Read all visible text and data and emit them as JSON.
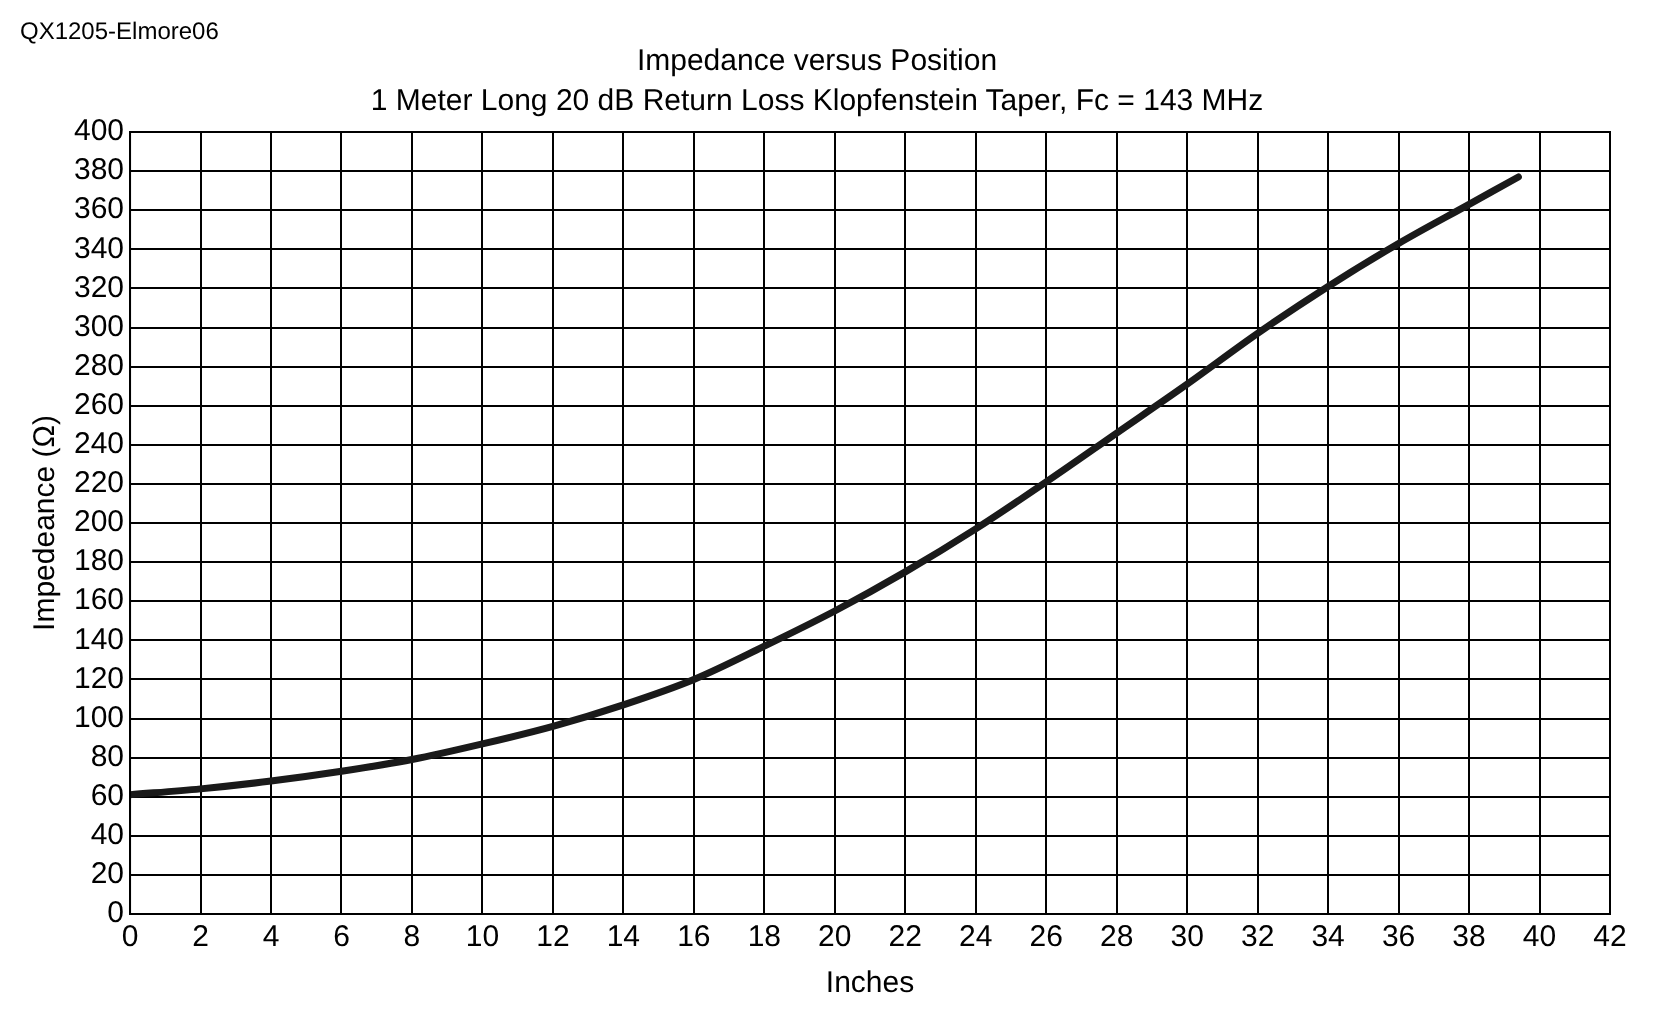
{
  "chart_data": {
    "type": "line",
    "title": "Impedance versus Position",
    "subtitle": "1 Meter Long 20 dB Return Loss Klopfenstein Taper, Fc = 143 MHz",
    "xlabel": "Inches",
    "ylabel": "Impedeance (Ω)",
    "annotations": [
      "QX1205-Elmore06"
    ],
    "x": [
      0,
      2,
      4,
      6,
      8,
      10,
      12,
      14,
      16,
      18,
      20,
      22,
      24,
      26,
      28,
      30,
      32,
      34,
      36,
      38,
      39.4
    ],
    "series": [
      {
        "color": "#1a1a1a",
        "values": [
          61,
          64,
          68,
          73,
          79,
          87,
          96,
          107,
          120,
          137,
          155,
          175,
          197,
          221,
          246,
          271,
          297,
          321,
          343,
          363,
          377
        ]
      }
    ],
    "xlim": [
      0,
      42
    ],
    "xticks": [
      0,
      2,
      4,
      6,
      8,
      10,
      12,
      14,
      16,
      18,
      20,
      22,
      24,
      26,
      28,
      30,
      32,
      34,
      36,
      38,
      40,
      42
    ],
    "ylim": [
      0,
      400
    ],
    "yticks": [
      0,
      20,
      40,
      60,
      80,
      100,
      120,
      140,
      160,
      180,
      200,
      220,
      240,
      260,
      280,
      300,
      320,
      340,
      360,
      380,
      400
    ],
    "grid": true,
    "legend": false,
    "marker": "none",
    "line_style": "solid"
  }
}
